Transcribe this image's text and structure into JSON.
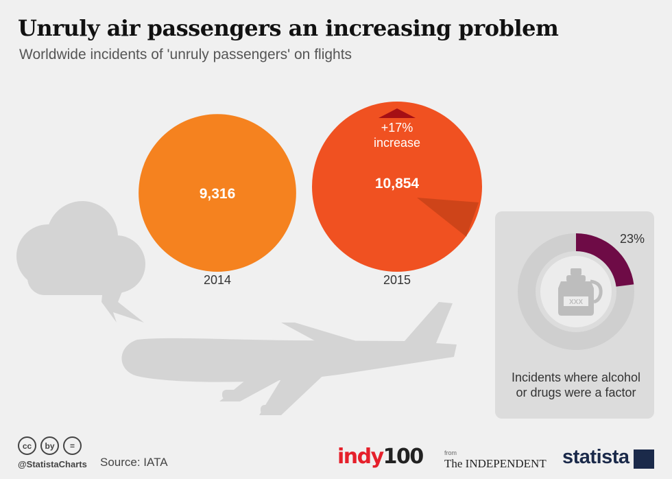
{
  "title": "Unruly air passengers an increasing problem",
  "subtitle": "Worldwide incidents of 'unruly passengers' on flights",
  "chart_data": [
    {
      "type": "bubble",
      "title": "Worldwide incidents of 'unruly passengers' on flights",
      "categories": [
        "2014",
        "2015"
      ],
      "values": [
        9316,
        10854
      ],
      "value_labels": [
        "9,316",
        "10,854"
      ],
      "colors": [
        "#f5821f",
        "#f05121"
      ],
      "annotation": {
        "line1": "+17%",
        "line2": "increase"
      }
    },
    {
      "type": "pie",
      "title": "Incidents where alcohol or drugs were a factor",
      "values": [
        23,
        77
      ],
      "value_label": "23%",
      "caption_line1": "Incidents where alcohol",
      "caption_line2": "or drugs were a factor",
      "colors": [
        "#6e0b46",
        "#d9d9d9"
      ]
    }
  ],
  "bottle_label": "XXX",
  "footer": {
    "cc_icons": [
      "cc",
      "by",
      "="
    ],
    "handle": "@StatistaCharts",
    "source": "Source: IATA",
    "indy_a": "indy",
    "indy_b": "100",
    "from": "from",
    "independent": "The INDEPENDENT",
    "statista": "statista"
  }
}
